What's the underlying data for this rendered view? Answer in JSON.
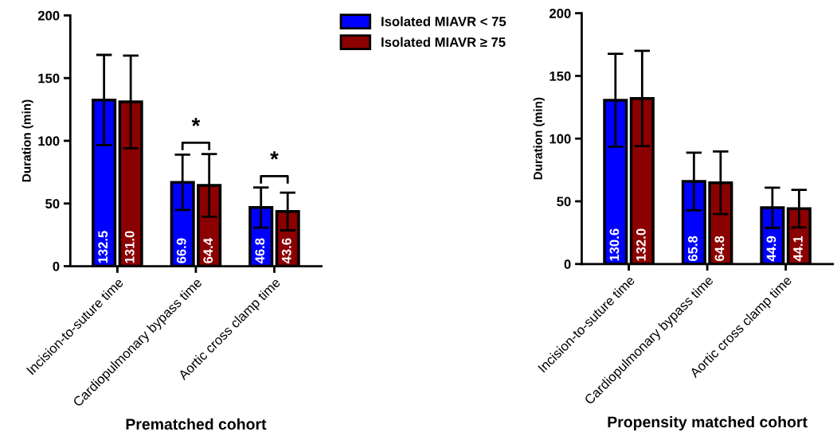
{
  "chart_data": [
    {
      "type": "bar",
      "xlabel": "Prematched cohort",
      "ylabel": "Duration (min)",
      "categories": [
        "Incision-to-suture time",
        "Cardiopulmonary bypass time",
        "Aortic cross clamp time"
      ],
      "series": [
        {
          "name": "Isolated MIAVR < 75",
          "color": "#0000ff",
          "values": [
            132.5,
            66.9,
            46.8
          ],
          "errors": [
            36,
            22,
            16
          ],
          "value_labels": [
            "132.5",
            "66.9",
            "46.8"
          ]
        },
        {
          "name": "Isolated MIAVR ≥ 75",
          "color": "#8b0000",
          "values": [
            131.0,
            64.4,
            43.6
          ],
          "errors": [
            37,
            25,
            15
          ],
          "value_labels": [
            "131.0",
            "64.4",
            "43.6"
          ]
        }
      ],
      "ylim": [
        0,
        200
      ],
      "yticks": [
        0,
        50,
        100,
        150,
        200
      ],
      "legend": "top right",
      "grid": false,
      "annotations": [
        "*",
        "*"
      ]
    },
    {
      "type": "bar",
      "xlabel": "Propensity matched cohort",
      "ylabel": "Duration (min)",
      "categories": [
        "Incision-to-suture time",
        "Cardiopulmonary bypass time",
        "Aortic cross clamp time"
      ],
      "series": [
        {
          "color": "#0000ff",
          "values": [
            130.6,
            65.8,
            44.9
          ],
          "errors": [
            37,
            23,
            16
          ],
          "value_labels": [
            "130.6",
            "65.8",
            "44.9"
          ]
        },
        {
          "color": "#8b0000",
          "values": [
            132.0,
            64.8,
            44.1
          ],
          "errors": [
            38,
            25,
            15
          ],
          "value_labels": [
            "132.0",
            "64.8",
            "44.1"
          ]
        }
      ],
      "ylim": [
        0,
        200
      ],
      "yticks": [
        0,
        50,
        100,
        150,
        200
      ],
      "grid": false
    }
  ]
}
